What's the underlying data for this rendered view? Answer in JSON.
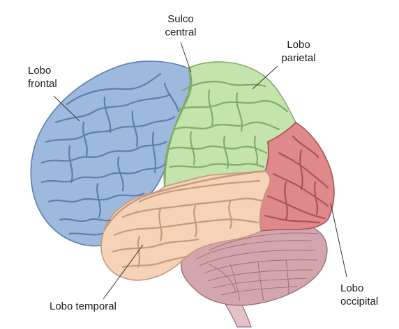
{
  "labels": {
    "central_sulcus": {
      "line1": "Sulco",
      "line2": "central"
    },
    "parietal_lobe": {
      "line1": "Lobo",
      "line2": "parietal"
    },
    "frontal_lobe": {
      "line1": "Lobo",
      "line2": "frontal"
    },
    "temporal_lobe": {
      "line1": "Lobo temporal"
    },
    "occipital_lobe": {
      "line1": "Lobo",
      "line2": "occipital"
    }
  },
  "colors": {
    "frontal": "#9db9dd",
    "frontal_stroke": "#5b7fae",
    "parietal": "#c4e3ad",
    "parietal_stroke": "#7fae66",
    "temporal": "#f4d3b9",
    "temporal_stroke": "#c7987a",
    "occipital": "#e0898b",
    "occipital_stroke": "#a9545a",
    "cerebellum": "#d3a6ad",
    "cerebellum_stroke": "#9b6d78",
    "brainstem": "#e2c2c6",
    "leader_line": "#333333"
  }
}
